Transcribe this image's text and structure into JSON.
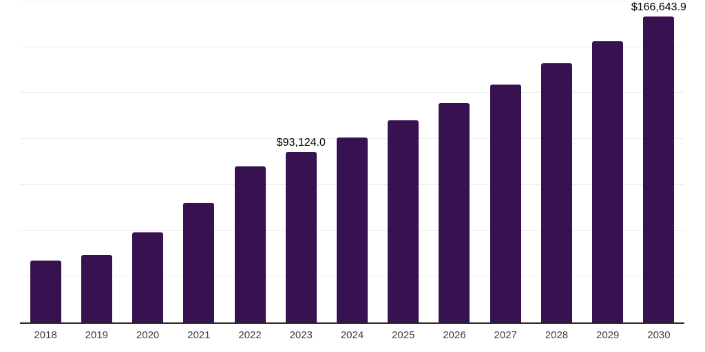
{
  "chart_data": {
    "type": "bar",
    "title": "",
    "xlabel": "",
    "ylabel": "",
    "categories": [
      "2018",
      "2019",
      "2020",
      "2021",
      "2022",
      "2023",
      "2024",
      "2025",
      "2026",
      "2027",
      "2028",
      "2029",
      "2030"
    ],
    "values": [
      33700,
      36900,
      49200,
      65300,
      85000,
      93124.0,
      100900,
      110000,
      119500,
      129700,
      141100,
      153300,
      166643.9
    ],
    "ylim": [
      0,
      175000
    ],
    "gridline_interval": 25000,
    "grid": "horizontal",
    "legend_position": "none",
    "annotations": [
      {
        "category": "2023",
        "text": "$93,124.0"
      },
      {
        "category": "2030",
        "text": "$166,643.9"
      }
    ],
    "colors": {
      "bar": "#381150",
      "axis": "#262626",
      "gridline": "#eeeeee",
      "tick_label": "#3d3d3d",
      "annotation": "#000000",
      "background": "#ffffff"
    }
  }
}
